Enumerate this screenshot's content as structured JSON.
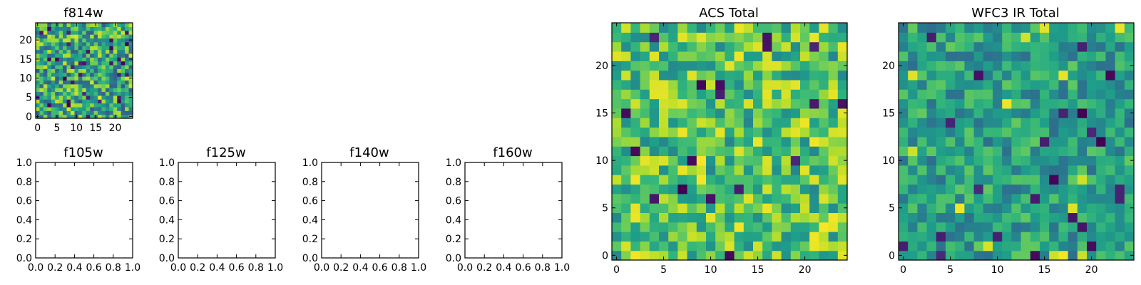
{
  "chart_data": [
    {
      "id": "f814w",
      "type": "heatmap",
      "title": "f814w",
      "colormap": "viridis",
      "xlim": [
        -0.5,
        24.5
      ],
      "ylim": [
        -0.5,
        24.5
      ],
      "xticks": [
        "0",
        "5",
        "10",
        "15",
        "20"
      ],
      "xtick_values": [
        0,
        5,
        10,
        15,
        20
      ],
      "yticks": [
        "0",
        "5",
        "10",
        "15",
        "20"
      ],
      "ytick_values": [
        0,
        5,
        10,
        15,
        20
      ],
      "grid_size": [
        25,
        25
      ],
      "value_range": [
        0.0,
        1.0
      ],
      "seed": 814,
      "mean": 0.6,
      "spread": 0.32
    },
    {
      "id": "f105w",
      "type": "empty",
      "title": "f105w",
      "xlim": [
        0,
        1
      ],
      "ylim": [
        0,
        1
      ],
      "xticks": [
        "0.0",
        "0.2",
        "0.4",
        "0.6",
        "0.8",
        "1.0"
      ],
      "xtick_values": [
        0,
        0.2,
        0.4,
        0.6,
        0.8,
        1.0
      ],
      "yticks": [
        "0.0",
        "0.2",
        "0.4",
        "0.6",
        "0.8",
        "1.0"
      ],
      "ytick_values": [
        0,
        0.2,
        0.4,
        0.6,
        0.8,
        1.0
      ]
    },
    {
      "id": "f125w",
      "type": "empty",
      "title": "f125w",
      "xlim": [
        0,
        1
      ],
      "ylim": [
        0,
        1
      ],
      "xticks": [
        "0.0",
        "0.2",
        "0.4",
        "0.6",
        "0.8",
        "1.0"
      ],
      "xtick_values": [
        0,
        0.2,
        0.4,
        0.6,
        0.8,
        1.0
      ],
      "yticks": [
        "0.0",
        "0.2",
        "0.4",
        "0.6",
        "0.8",
        "1.0"
      ],
      "ytick_values": [
        0,
        0.2,
        0.4,
        0.6,
        0.8,
        1.0
      ]
    },
    {
      "id": "f140w",
      "type": "empty",
      "title": "f140w",
      "xlim": [
        0,
        1
      ],
      "ylim": [
        0,
        1
      ],
      "xticks": [
        "0.0",
        "0.2",
        "0.4",
        "0.6",
        "0.8",
        "1.0"
      ],
      "xtick_values": [
        0,
        0.2,
        0.4,
        0.6,
        0.8,
        1.0
      ],
      "yticks": [
        "0.0",
        "0.2",
        "0.4",
        "0.6",
        "0.8",
        "1.0"
      ],
      "ytick_values": [
        0,
        0.2,
        0.4,
        0.6,
        0.8,
        1.0
      ]
    },
    {
      "id": "f160w",
      "type": "empty",
      "title": "f160w",
      "xlim": [
        0,
        1
      ],
      "ylim": [
        0,
        1
      ],
      "xticks": [
        "0.0",
        "0.2",
        "0.4",
        "0.6",
        "0.8",
        "1.0"
      ],
      "xtick_values": [
        0,
        0.2,
        0.4,
        0.6,
        0.8,
        1.0
      ],
      "yticks": [
        "0.0",
        "0.2",
        "0.4",
        "0.6",
        "0.8",
        "1.0"
      ],
      "ytick_values": [
        0,
        0.2,
        0.4,
        0.6,
        0.8,
        1.0
      ]
    },
    {
      "id": "acs-total",
      "type": "heatmap",
      "title": "ACS Total",
      "colormap": "viridis",
      "xlim": [
        -0.5,
        24.5
      ],
      "ylim": [
        -0.5,
        24.5
      ],
      "xticks": [
        "0",
        "5",
        "10",
        "15",
        "20"
      ],
      "xtick_values": [
        0,
        5,
        10,
        15,
        20
      ],
      "yticks": [
        "0",
        "5",
        "10",
        "15",
        "20"
      ],
      "ytick_values": [
        0,
        5,
        10,
        15,
        20
      ],
      "grid_size": [
        25,
        25
      ],
      "value_range": [
        0.0,
        1.0
      ],
      "seed": 2024,
      "mean": 0.72,
      "spread": 0.26
    },
    {
      "id": "wfc3-ir-total",
      "type": "heatmap",
      "title": "WFC3 IR Total",
      "colormap": "viridis",
      "xlim": [
        -0.5,
        24.5
      ],
      "ylim": [
        -0.5,
        24.5
      ],
      "xticks": [
        "0",
        "5",
        "10",
        "15",
        "20"
      ],
      "xtick_values": [
        0,
        5,
        10,
        15,
        20
      ],
      "yticks": [
        "0",
        "5",
        "10",
        "15",
        "20"
      ],
      "ytick_values": [
        0,
        5,
        10,
        15,
        20
      ],
      "grid_size": [
        25,
        25
      ],
      "value_range": [
        0.0,
        1.0
      ],
      "seed": 3141,
      "mean": 0.56,
      "spread": 0.2
    }
  ]
}
